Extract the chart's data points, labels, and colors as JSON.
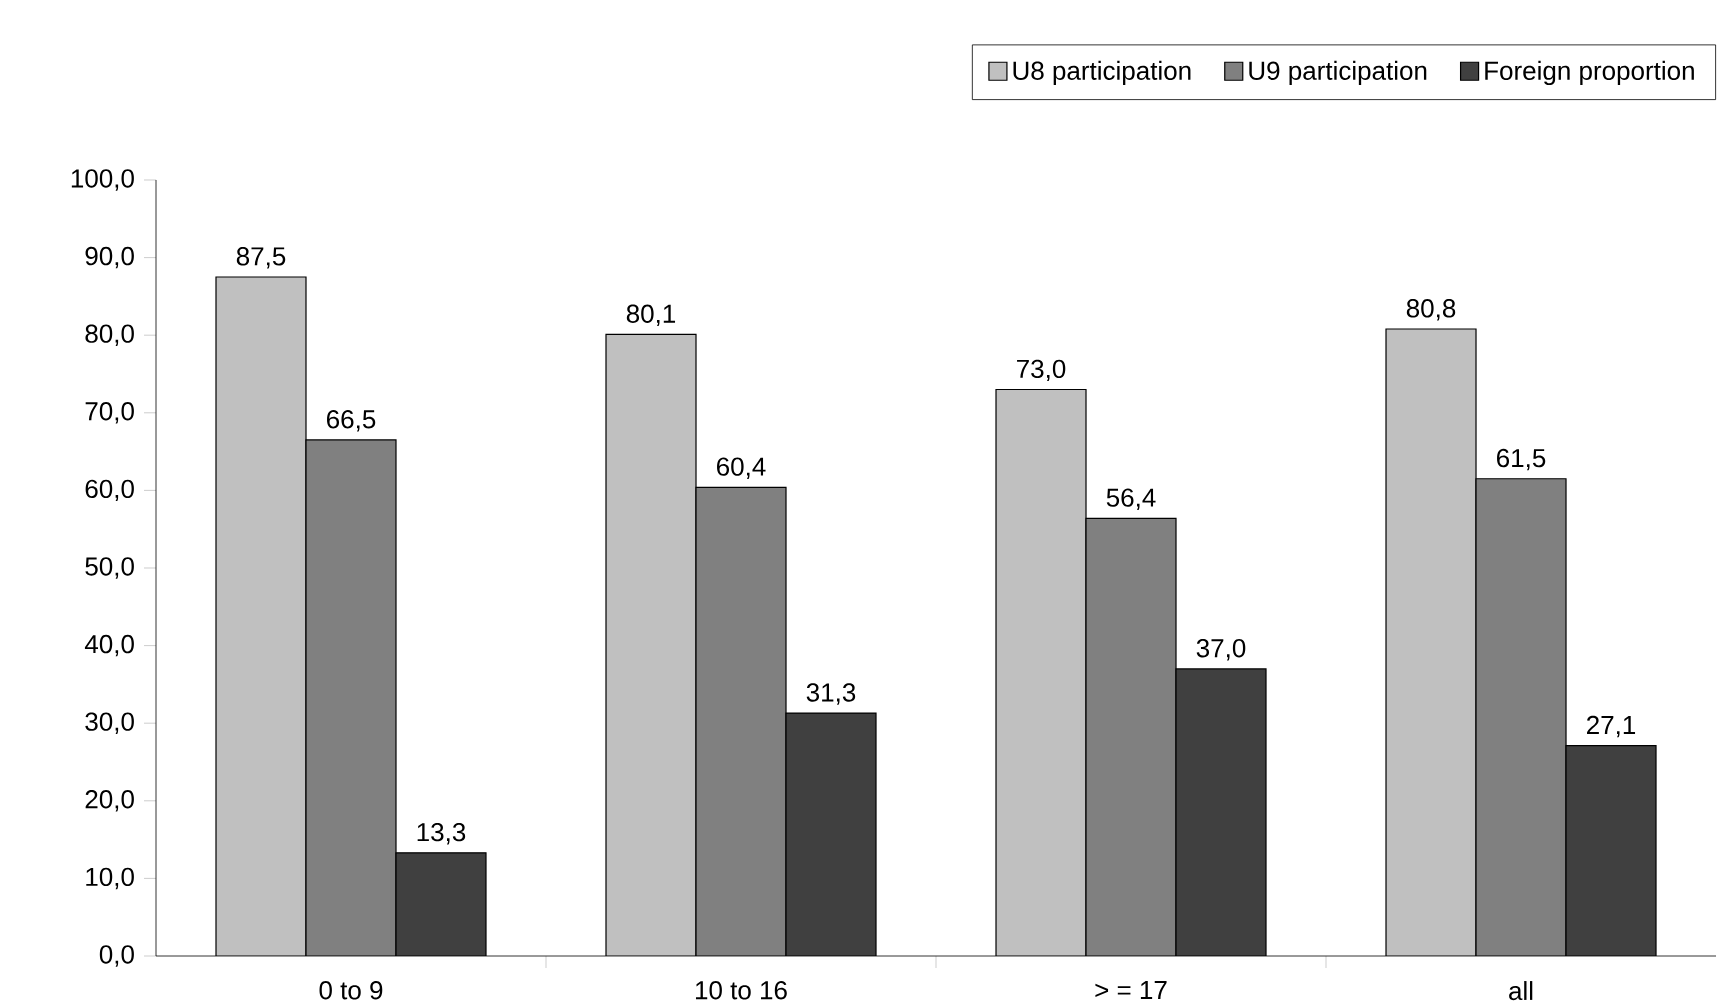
{
  "chart_data": {
    "type": "bar",
    "categories": [
      "0 to 9",
      "10 to 16",
      "> = 17",
      "all"
    ],
    "series": [
      {
        "name": "U8 participation",
        "color": "#c0c0c0",
        "values": [
          87.5,
          80.1,
          73.0,
          80.8
        ],
        "value_labels": [
          "87,5",
          "80,1",
          "73,0",
          "80,8"
        ]
      },
      {
        "name": "U9 participation",
        "color": "#808080",
        "values": [
          66.5,
          60.4,
          56.4,
          61.5
        ],
        "value_labels": [
          "66,5",
          "60,4",
          "56,4",
          "61,5"
        ]
      },
      {
        "name": "Foreign proportion",
        "color": "#404040",
        "values": [
          13.3,
          31.3,
          37.0,
          27.1
        ],
        "value_labels": [
          "13,3",
          "31,3",
          "37,0",
          "27,1"
        ]
      }
    ],
    "ylim": [
      0,
      100
    ],
    "yticks": [
      {
        "value": 0,
        "label": "0,0"
      },
      {
        "value": 10,
        "label": "10,0"
      },
      {
        "value": 20,
        "label": "20,0"
      },
      {
        "value": 30,
        "label": "30,0"
      },
      {
        "value": 40,
        "label": "40,0"
      },
      {
        "value": 50,
        "label": "50,0"
      },
      {
        "value": 60,
        "label": "60,0"
      },
      {
        "value": 70,
        "label": "70,0"
      },
      {
        "value": 80,
        "label": "80,0"
      },
      {
        "value": 90,
        "label": "90,0"
      },
      {
        "value": 100,
        "label": "100,0"
      }
    ],
    "grid": false,
    "legend": "top right"
  }
}
